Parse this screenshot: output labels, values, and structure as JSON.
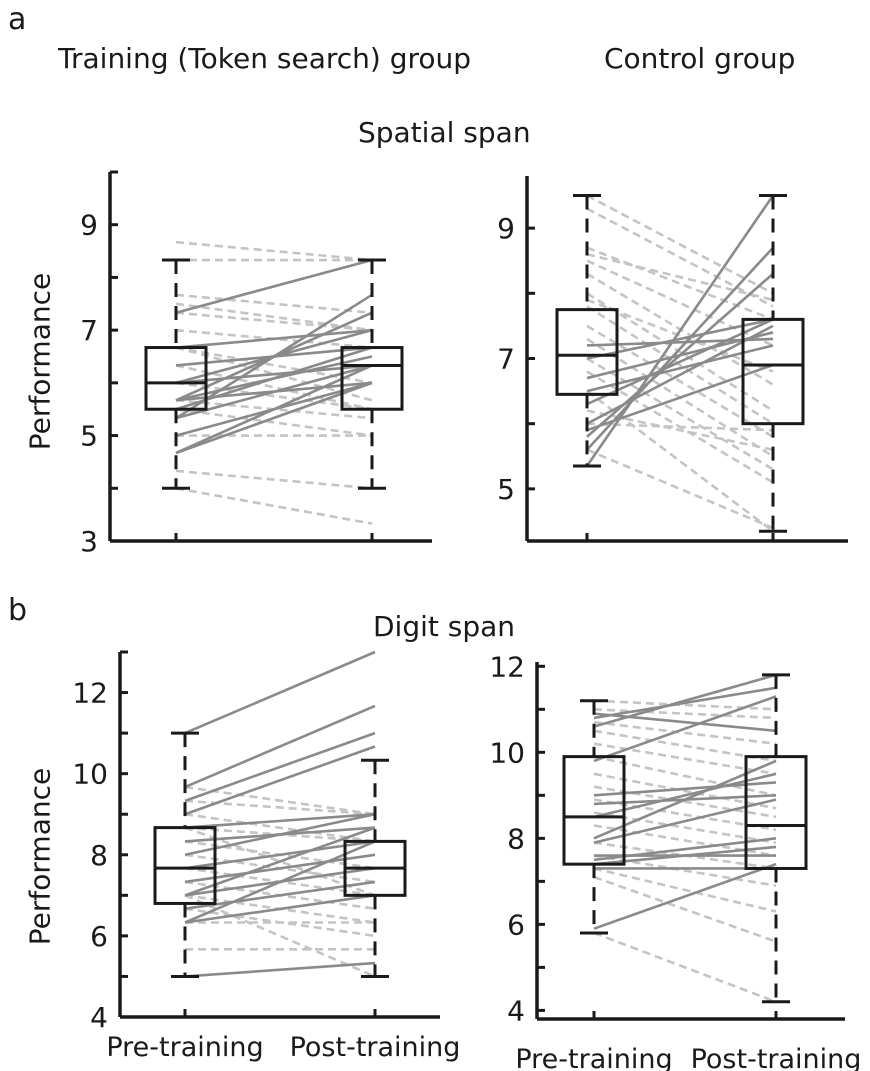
{
  "panel_letters": {
    "a": "a",
    "b": "b"
  },
  "group_titles": {
    "training": "Training (Token search) group",
    "control": "Control group"
  },
  "row_titles": {
    "spatial": "Spatial span",
    "digit": "Digit span"
  },
  "ylabel": "Performance",
  "xticks": [
    "Pre-training",
    "Post-training"
  ],
  "colors": {
    "improve": "#8a8a8a",
    "decline": "#c4c4c4",
    "box": "#1a1a1a"
  },
  "chart_data": [
    {
      "type": "box",
      "title": "Spatial span",
      "group": "Training (Token search) group",
      "ylabel": "Performance",
      "categories": [
        "Pre-training",
        "Post-training"
      ],
      "ylim": [
        3,
        10
      ],
      "yticks": [
        3,
        5,
        7,
        9
      ],
      "boxes": [
        {
          "q1": 5.5,
          "median": 6.0,
          "q3": 6.67,
          "whisker_low": 4.0,
          "whisker_high": 8.33
        },
        {
          "q1": 5.5,
          "median": 6.33,
          "q3": 6.67,
          "whisker_low": 4.0,
          "whisker_high": 8.33
        }
      ],
      "increased": [
        [
          4.67,
          6.33
        ],
        [
          4.67,
          6.0
        ],
        [
          5.33,
          7.67
        ],
        [
          5.67,
          7.33
        ],
        [
          6.0,
          7.0
        ],
        [
          5.5,
          6.67
        ],
        [
          5.67,
          6.5
        ],
        [
          6.0,
          6.33
        ],
        [
          5.33,
          6.33
        ],
        [
          6.33,
          6.67
        ],
        [
          7.33,
          8.33
        ],
        [
          5.67,
          6.0
        ],
        [
          6.67,
          7.0
        ],
        [
          5.0,
          6.0
        ]
      ],
      "decreased": [
        [
          8.67,
          8.33
        ],
        [
          8.33,
          8.33
        ],
        [
          7.67,
          7.33
        ],
        [
          7.33,
          7.0
        ],
        [
          7.0,
          6.67
        ],
        [
          6.67,
          5.67
        ],
        [
          6.67,
          6.0
        ],
        [
          6.33,
          5.5
        ],
        [
          6.0,
          5.5
        ],
        [
          5.67,
          5.33
        ],
        [
          5.5,
          5.0
        ],
        [
          5.0,
          5.0
        ],
        [
          4.33,
          4.0
        ],
        [
          4.0,
          3.33
        ],
        [
          7.5,
          7.0
        ]
      ]
    },
    {
      "type": "box",
      "title": "Spatial span",
      "group": "Control group",
      "ylabel": "",
      "categories": [
        "Pre-training",
        "Post-training"
      ],
      "ylim": [
        4.2,
        9.8
      ],
      "yticks": [
        5,
        7,
        9
      ],
      "boxes": [
        {
          "q1": 6.45,
          "median": 7.05,
          "q3": 7.75,
          "whisker_low": 5.35,
          "whisker_high": 9.5
        },
        {
          "q1": 6.0,
          "median": 6.9,
          "q3": 7.6,
          "whisker_low": 4.35,
          "whisker_high": 9.5
        }
      ],
      "increased": [
        [
          5.35,
          9.5
        ],
        [
          5.6,
          8.7
        ],
        [
          5.8,
          8.3
        ],
        [
          6.0,
          7.5
        ],
        [
          6.3,
          7.6
        ],
        [
          6.5,
          7.2
        ],
        [
          6.7,
          7.4
        ],
        [
          7.0,
          7.6
        ],
        [
          7.2,
          7.3
        ],
        [
          5.9,
          6.9
        ]
      ],
      "decreased": [
        [
          9.5,
          8.0
        ],
        [
          9.3,
          7.8
        ],
        [
          8.7,
          7.6
        ],
        [
          8.5,
          7.2
        ],
        [
          8.3,
          6.6
        ],
        [
          8.0,
          6.2
        ],
        [
          7.8,
          6.0
        ],
        [
          7.5,
          5.8
        ],
        [
          7.3,
          5.5
        ],
        [
          7.0,
          5.3
        ],
        [
          6.8,
          5.1
        ],
        [
          6.5,
          4.35
        ],
        [
          6.2,
          5.6
        ],
        [
          6.0,
          5.9
        ],
        [
          5.6,
          4.4
        ],
        [
          8.6,
          7.9
        ],
        [
          7.9,
          6.8
        ]
      ]
    },
    {
      "type": "box",
      "title": "Digit span",
      "group": "Training (Token search) group",
      "ylabel": "Performance",
      "categories": [
        "Pre-training",
        "Post-training"
      ],
      "ylim": [
        4,
        13
      ],
      "yticks": [
        4,
        6,
        8,
        10,
        12
      ],
      "boxes": [
        {
          "q1": 6.8,
          "median": 7.67,
          "q3": 8.67,
          "whisker_low": 5.0,
          "whisker_high": 11.0
        },
        {
          "q1": 7.0,
          "median": 7.67,
          "q3": 8.33,
          "whisker_low": 5.0,
          "whisker_high": 10.33
        }
      ],
      "increased": [
        [
          11.0,
          13.0
        ],
        [
          9.67,
          11.67
        ],
        [
          9.33,
          11.0
        ],
        [
          9.0,
          10.67
        ],
        [
          8.67,
          9.0
        ],
        [
          8.33,
          8.67
        ],
        [
          8.0,
          9.0
        ],
        [
          7.67,
          8.33
        ],
        [
          7.33,
          8.0
        ],
        [
          7.0,
          7.67
        ],
        [
          6.67,
          7.33
        ],
        [
          6.33,
          7.0
        ],
        [
          6.33,
          8.33
        ],
        [
          5.0,
          5.33
        ],
        [
          7.0,
          8.67
        ]
      ],
      "decreased": [
        [
          9.33,
          9.0
        ],
        [
          9.0,
          8.33
        ],
        [
          8.67,
          8.33
        ],
        [
          8.33,
          7.67
        ],
        [
          8.0,
          7.33
        ],
        [
          7.67,
          7.0
        ],
        [
          7.33,
          6.67
        ],
        [
          7.0,
          6.33
        ],
        [
          6.67,
          6.0
        ],
        [
          6.33,
          6.33
        ],
        [
          5.67,
          5.67
        ],
        [
          9.67,
          9.0
        ],
        [
          8.67,
          7.0
        ],
        [
          7.0,
          5.0
        ]
      ]
    },
    {
      "type": "box",
      "title": "Digit span",
      "group": "Control group",
      "ylabel": "",
      "categories": [
        "Pre-training",
        "Post-training"
      ],
      "ylim": [
        3.8,
        12.1
      ],
      "yticks": [
        4,
        6,
        8,
        10,
        12
      ],
      "boxes": [
        {
          "q1": 7.4,
          "median": 8.5,
          "q3": 9.9,
          "whisker_low": 5.8,
          "whisker_high": 11.2
        },
        {
          "q1": 7.3,
          "median": 8.3,
          "q3": 9.9,
          "whisker_low": 4.2,
          "whisker_high": 11.8
        }
      ],
      "increased": [
        [
          10.6,
          11.8
        ],
        [
          10.8,
          11.5
        ],
        [
          9.8,
          11.3
        ],
        [
          10.9,
          10.5
        ],
        [
          8.0,
          9.8
        ],
        [
          8.5,
          9.5
        ],
        [
          9.0,
          9.3
        ],
        [
          8.8,
          9.0
        ],
        [
          7.9,
          8.9
        ],
        [
          7.5,
          8.0
        ],
        [
          7.4,
          7.8
        ],
        [
          7.6,
          7.6
        ],
        [
          5.9,
          7.4
        ],
        [
          7.3,
          7.3
        ]
      ],
      "decreased": [
        [
          11.2,
          11.0
        ],
        [
          11.0,
          10.8
        ],
        [
          10.7,
          10.2
        ],
        [
          10.5,
          9.8
        ],
        [
          10.2,
          9.5
        ],
        [
          9.9,
          9.0
        ],
        [
          9.5,
          8.7
        ],
        [
          9.2,
          8.5
        ],
        [
          8.9,
          8.2
        ],
        [
          8.6,
          7.9
        ],
        [
          8.3,
          7.6
        ],
        [
          7.9,
          7.3
        ],
        [
          7.6,
          6.9
        ],
        [
          7.3,
          6.3
        ],
        [
          7.1,
          5.6
        ],
        [
          5.8,
          4.2
        ]
      ]
    }
  ]
}
